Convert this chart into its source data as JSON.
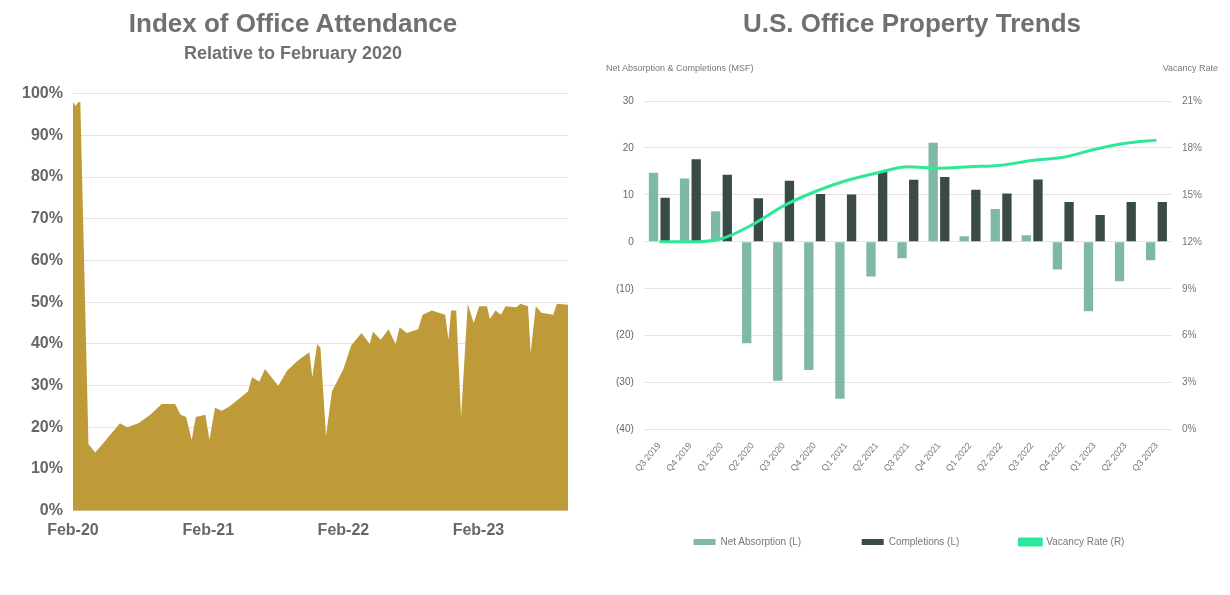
{
  "chart_data": [
    {
      "type": "area",
      "title": "Index of Office Attendance",
      "subtitle": "Relative to February 2020",
      "xlim": [
        "2020-02-01",
        "2023-10-01"
      ],
      "xticks": [
        {
          "value": "2020-02-01",
          "label": "Feb-20"
        },
        {
          "value": "2021-02-01",
          "label": "Feb-21"
        },
        {
          "value": "2022-02-01",
          "label": "Feb-22"
        },
        {
          "value": "2023-02-01",
          "label": "Feb-23"
        }
      ],
      "ylim": [
        0,
        100
      ],
      "yticks": [
        {
          "value": 0,
          "label": "0%"
        },
        {
          "value": 10,
          "label": "10%"
        },
        {
          "value": 20,
          "label": "20%"
        },
        {
          "value": 30,
          "label": "30%"
        },
        {
          "value": 40,
          "label": "40%"
        },
        {
          "value": 50,
          "label": "50%"
        },
        {
          "value": 60,
          "label": "60%"
        },
        {
          "value": 70,
          "label": "70%"
        },
        {
          "value": 80,
          "label": "80%"
        },
        {
          "value": 90,
          "label": "90%"
        },
        {
          "value": 100,
          "label": "100%"
        }
      ],
      "grid": "y",
      "series": [
        {
          "color": "#bf9a38",
          "x": [
            "2020-02-01",
            "2020-02-08",
            "2020-02-16",
            "2020-02-21",
            "2020-03-14",
            "2020-04-01",
            "2020-04-16",
            "2020-06-07",
            "2020-06-27",
            "2020-07-27",
            "2020-08-28",
            "2020-09-28",
            "2020-11-03",
            "2020-11-18",
            "2020-12-03",
            "2020-12-18",
            "2020-12-29",
            "2021-01-24",
            "2021-02-04",
            "2021-02-19",
            "2021-03-09",
            "2021-03-30",
            "2021-05-19",
            "2021-05-30",
            "2021-06-19",
            "2021-07-04",
            "2021-08-09",
            "2021-09-01",
            "2021-10-01",
            "2021-11-01",
            "2021-11-09",
            "2021-11-22",
            "2021-12-01",
            "2021-12-16",
            "2022-01-01",
            "2022-02-01",
            "2022-02-22",
            "2022-03-22",
            "2022-04-13",
            "2022-04-22",
            "2022-05-13",
            "2022-06-03",
            "2022-06-22",
            "2022-07-03",
            "2022-07-22",
            "2022-08-22",
            "2022-09-03",
            "2022-09-28",
            "2022-11-03",
            "2022-11-12",
            "2022-11-19",
            "2022-12-03",
            "2022-12-16",
            "2023-01-03",
            "2023-01-19",
            "2023-02-03",
            "2023-02-24",
            "2023-03-04",
            "2023-03-19",
            "2023-04-03",
            "2023-04-15",
            "2023-05-15",
            "2023-05-25",
            "2023-06-15",
            "2023-06-22",
            "2023-07-06",
            "2023-07-21",
            "2023-08-22",
            "2023-09-01",
            "2023-10-01"
          ],
          "values": [
            98,
            97,
            98,
            98,
            16,
            14,
            15.5,
            21,
            20,
            21,
            23,
            25.6,
            25.6,
            23,
            22.5,
            17,
            22.5,
            23,
            17,
            24.7,
            24,
            25,
            28.6,
            32,
            31,
            34,
            30,
            33.5,
            36,
            38,
            32,
            40,
            39,
            18,
            28.6,
            34,
            39.6,
            42.6,
            40,
            43,
            41,
            43.5,
            40,
            44,
            42.6,
            43.5,
            47,
            48,
            47,
            41,
            48,
            48,
            22.5,
            49.6,
            45,
            49,
            49,
            46,
            48,
            47,
            49,
            48.8,
            49.6,
            49,
            37.8,
            49,
            47.5,
            47,
            49.6,
            49.4
          ]
        }
      ]
    },
    {
      "type": "bar",
      "title": "U.S. Office Property Trends",
      "ylabel": "Net Absorption & Completions (MSF)",
      "y2label": "Vacancy Rate",
      "categories": [
        "Q3 2019",
        "Q4 2019",
        "Q1 2020",
        "Q2 2020",
        "Q3 2020",
        "Q4 2020",
        "Q1 2021",
        "Q2 2021",
        "Q3 2021",
        "Q4 2021",
        "Q1 2022",
        "Q2 2022",
        "Q3 2022",
        "Q4 2022",
        "Q1 2023",
        "Q2 2023",
        "Q3 2023"
      ],
      "ylim": [
        -40,
        30
      ],
      "yticks": [
        {
          "value": -40,
          "label": "(40)"
        },
        {
          "value": -30,
          "label": "(30)"
        },
        {
          "value": -20,
          "label": "(20)"
        },
        {
          "value": -10,
          "label": "(10)"
        },
        0,
        10,
        20,
        30
      ],
      "y2lim": [
        0,
        21
      ],
      "y2ticks": [
        {
          "value": 0,
          "label": "0%"
        },
        {
          "value": 3,
          "label": "3%"
        },
        {
          "value": 6,
          "label": "6%"
        },
        {
          "value": 9,
          "label": "9%"
        },
        {
          "value": 12,
          "label": "12%"
        },
        {
          "value": 15,
          "label": "15%"
        },
        {
          "value": 18,
          "label": "18%"
        },
        {
          "value": 21,
          "label": "21%"
        }
      ],
      "grid": "y",
      "legend": "bottom",
      "series": [
        {
          "name": "Net Absorption (L)",
          "color": "#7fb9a6",
          "values": [
            14.7,
            13.5,
            6.5,
            -21.6,
            -29.6,
            -27.3,
            -33.4,
            -7.4,
            -3.5,
            21.1,
            1.2,
            7,
            1.4,
            -5.9,
            -14.8,
            -8.4,
            -3.9
          ]
        },
        {
          "name": "Completions (L)",
          "color": "#3a4a47",
          "values": [
            9.4,
            17.6,
            14.3,
            9.3,
            13,
            10.2,
            10.1,
            15,
            13.2,
            13.8,
            11.1,
            10.3,
            13.3,
            8.5,
            5.7,
            8.5,
            8.5
          ]
        },
        {
          "name": "Vacancy Rate (R)",
          "type": "line",
          "axis": "y2",
          "color": "#2ee89a",
          "values": [
            12,
            12,
            12.2,
            13.1,
            14.3,
            15.2,
            15.9,
            16.4,
            16.8,
            16.7,
            16.8,
            16.9,
            17.2,
            17.4,
            17.9,
            18.3,
            18.5
          ]
        }
      ]
    }
  ]
}
